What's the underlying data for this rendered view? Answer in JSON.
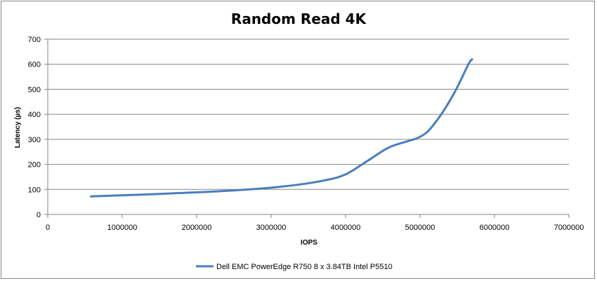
{
  "chart_data": {
    "type": "line",
    "title": "Random Read 4K",
    "xlabel": "IOPS",
    "ylabel": "Latency (µs)",
    "xlim": [
      0,
      7000000
    ],
    "ylim": [
      0,
      700
    ],
    "x_ticks": [
      "0",
      "1000000",
      "2000000",
      "3000000",
      "4000000",
      "5000000",
      "6000000",
      "7000000"
    ],
    "y_ticks": [
      "0",
      "100",
      "200",
      "300",
      "400",
      "500",
      "600",
      "700"
    ],
    "grid": "horizontal",
    "legend_position": "bottom",
    "series": [
      {
        "name": "Dell EMC PowerEdge R750 8 x 3.84TB Intel P5510",
        "color": "#4a7ebb",
        "x": [
          580000,
          1500000,
          2500000,
          3200000,
          3700000,
          4000000,
          4300000,
          4600000,
          5000000,
          5200000,
          5450000,
          5650000,
          5700000
        ],
        "y": [
          72,
          82,
          96,
          113,
          135,
          160,
          215,
          270,
          310,
          365,
          480,
          600,
          620
        ]
      }
    ]
  }
}
